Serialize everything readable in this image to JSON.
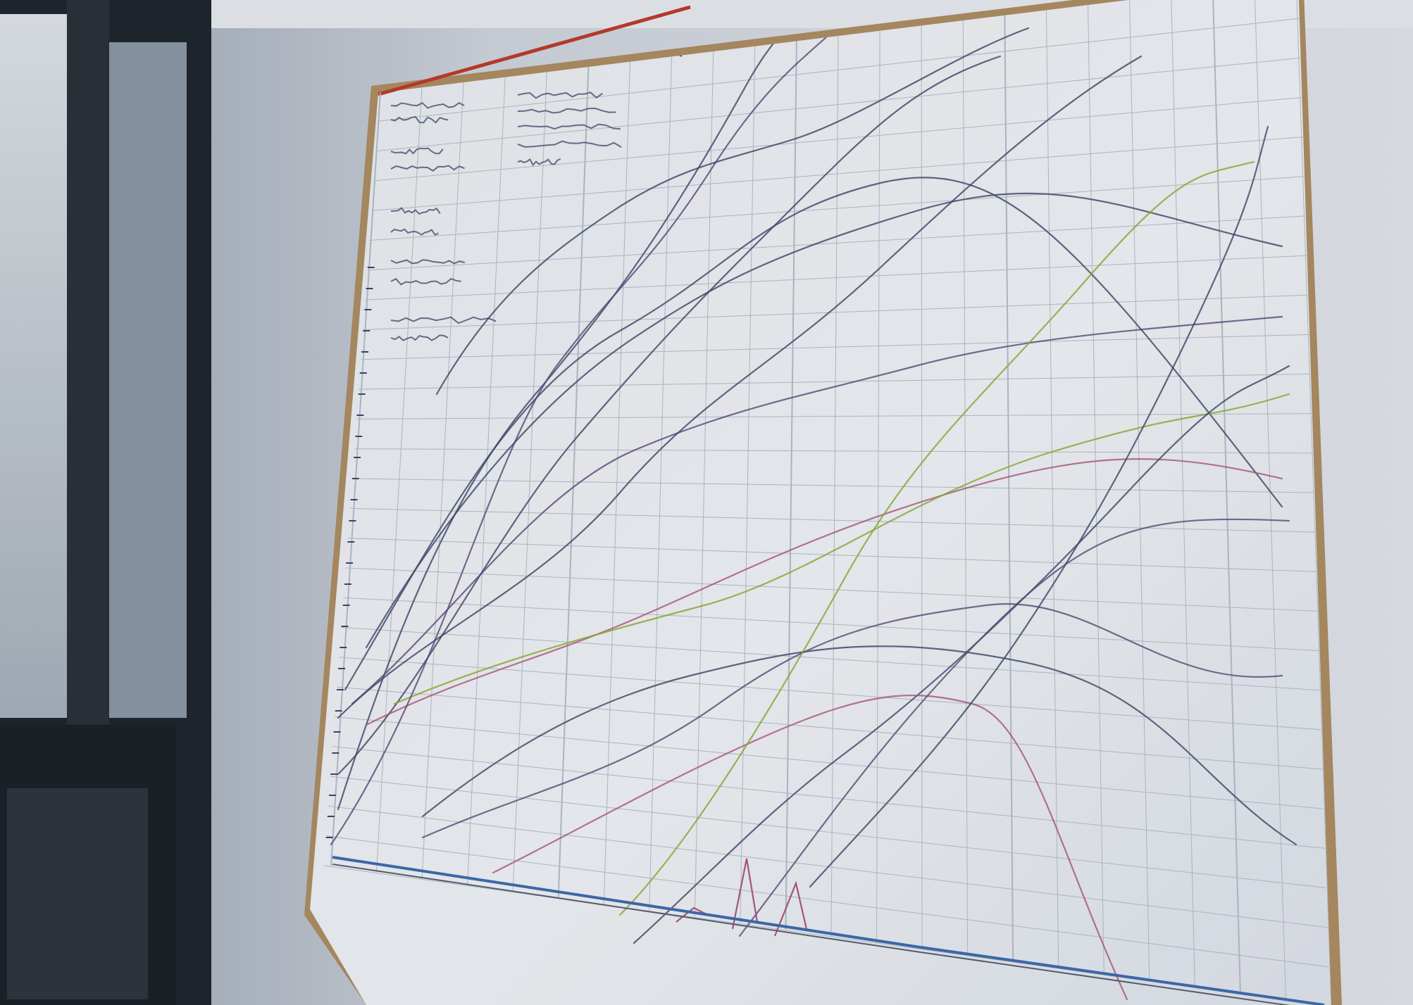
{
  "scene": {
    "description_free": true,
    "colors": {
      "wall": "#dfe3ea",
      "wall_shadow": "#b9c1cc",
      "window_frame": "#1f242b",
      "window_glass": "#c9cfd6",
      "window_sill": "#2b3038",
      "board_surface": "#f3f5f8",
      "board_frame": "#b08f63",
      "grid_line": "#b7c0cc",
      "ink_dark": "#3d4668",
      "ink_purple": "#5a4b7a",
      "ink_pink": "#b0587f",
      "ink_green": "#8fae2e",
      "ink_blue": "#3f6db0",
      "accent_red": "#c23a2a"
    },
    "icons": [
      "window",
      "whiteboard",
      "grid-chart"
    ]
  }
}
